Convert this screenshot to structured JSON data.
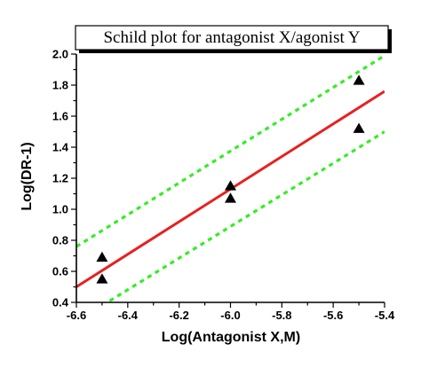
{
  "chart_data": {
    "type": "scatter",
    "title": "Schild plot for antagonist X/agonist Y",
    "xlabel": "Log(Antagonist X,M)",
    "ylabel": "Log(DR-1)",
    "xlim": [
      -6.6,
      -5.4
    ],
    "ylim": [
      0.4,
      2.0
    ],
    "x_ticks": [
      "-6.6",
      "-6.4",
      "-6.2",
      "-6.0",
      "-5.8",
      "-5.6",
      "-5.4"
    ],
    "y_ticks": [
      "0.4",
      "0.6",
      "0.8",
      "1.0",
      "1.2",
      "1.4",
      "1.6",
      "1.8",
      "2.0"
    ],
    "grid": false,
    "points": [
      {
        "x": -6.5,
        "y": 0.69
      },
      {
        "x": -6.5,
        "y": 0.55
      },
      {
        "x": -6.0,
        "y": 1.15
      },
      {
        "x": -6.0,
        "y": 1.07
      },
      {
        "x": -5.5,
        "y": 1.83
      },
      {
        "x": -5.5,
        "y": 1.52
      }
    ],
    "fit_line": {
      "x": [
        -6.6,
        -5.4
      ],
      "y": [
        0.5,
        1.76
      ]
    },
    "confidence_band": {
      "upper": {
        "x": [
          -6.6,
          -5.4
        ],
        "y": [
          0.76,
          1.99
        ]
      },
      "lower": {
        "x": [
          -6.47,
          -5.4
        ],
        "y": [
          0.41,
          1.5
        ]
      }
    },
    "colors": {
      "points": "#000000",
      "fit_line": "#e82020",
      "confidence_band": "#33ee22"
    }
  }
}
